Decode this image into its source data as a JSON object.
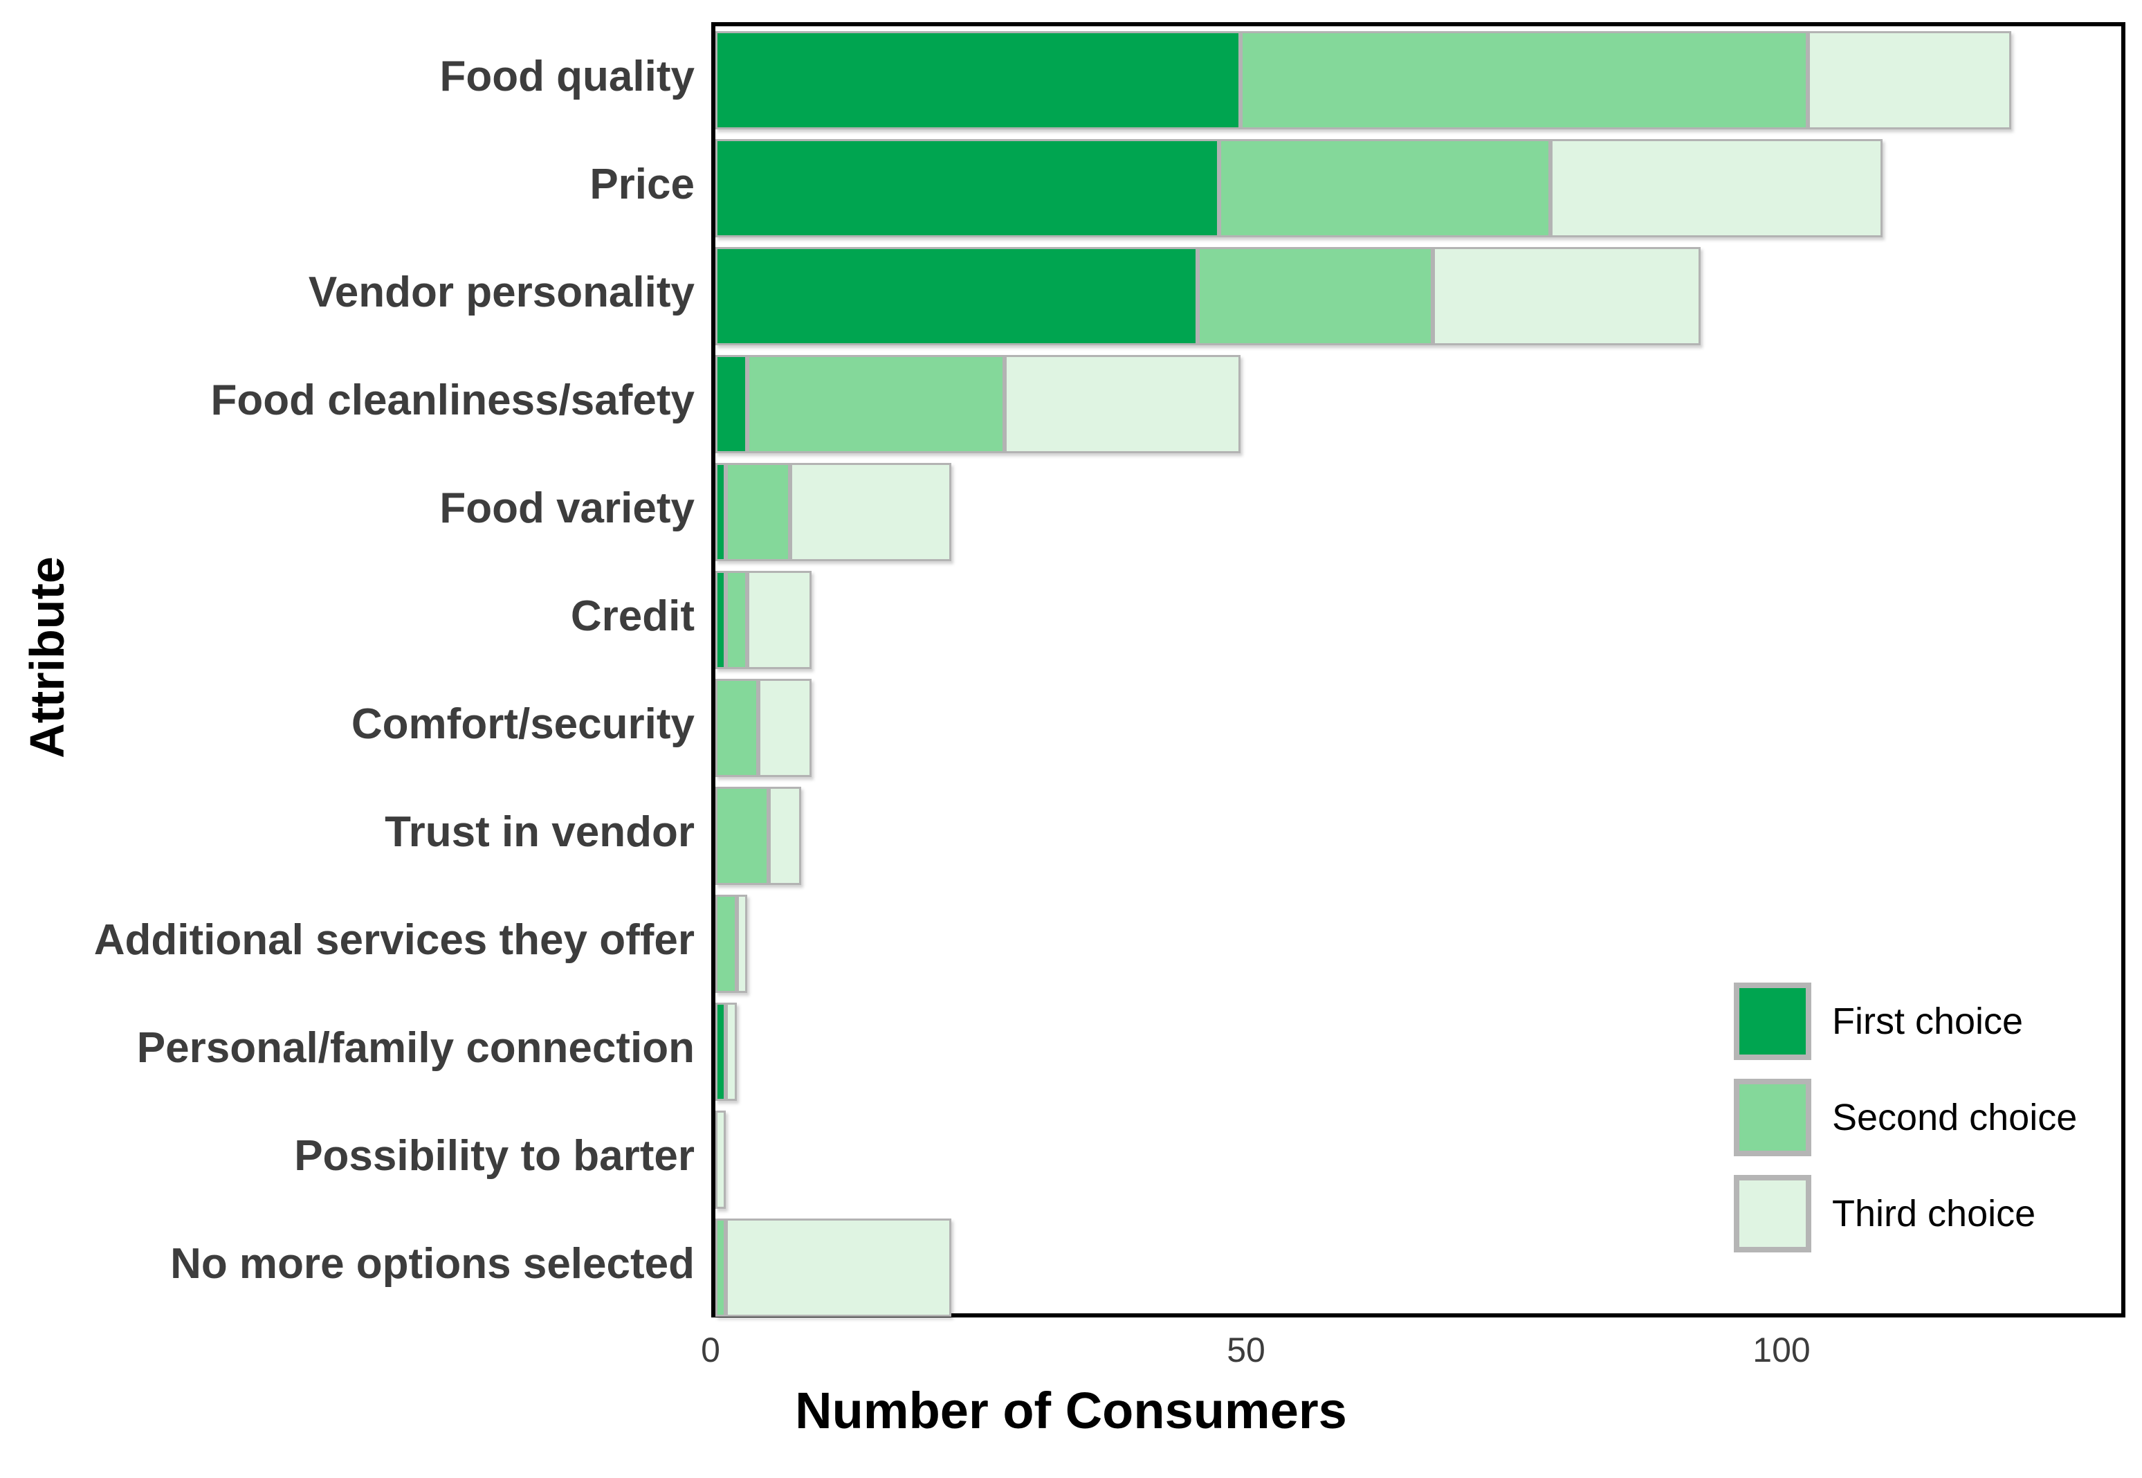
{
  "figure": {
    "y_axis_title": "Attribute",
    "x_axis_title": "Number of Consumers",
    "colors": {
      "first_choice": "#00A550",
      "second_choice": "#84D89A",
      "third_choice": "#DFF4E2",
      "bar_border": "#b3b3b3",
      "plot_frame": "#000000",
      "category_label": "#3d3d3d",
      "tick_label": "#3d3d3d"
    }
  },
  "chart_data": {
    "type": "bar",
    "stacked": true,
    "orientation": "horizontal",
    "title": "",
    "xlabel": "Number of Consumers",
    "ylabel": "Attribute",
    "xlim": [
      0,
      132
    ],
    "ticks": [
      "0",
      "50",
      "100"
    ],
    "tick_values": [
      0,
      50,
      100
    ],
    "grid": false,
    "legend_position": "bottom-right",
    "categories": [
      "Food quality",
      "Price",
      "Vendor personality",
      "Food cleanliness/safety",
      "Food variety",
      "Credit",
      "Comfort/security",
      "Trust in vendor",
      "Additional services they offer",
      "Personal/family connection",
      "Possibility to barter",
      "No more options selected"
    ],
    "series": [
      {
        "name": "First choice",
        "color": "#00A550",
        "values": [
          49,
          47,
          45,
          3,
          1,
          1,
          0,
          0,
          0,
          1,
          0,
          0
        ]
      },
      {
        "name": "Second choice",
        "color": "#84D89A",
        "values": [
          53,
          31,
          22,
          24,
          6,
          2,
          4,
          5,
          2,
          0,
          0,
          1
        ]
      },
      {
        "name": "Third choice",
        "color": "#DFF4E2",
        "values": [
          19,
          31,
          25,
          22,
          15,
          6,
          5,
          3,
          1,
          1,
          1,
          21
        ]
      }
    ],
    "totals": [
      121,
      109,
      92,
      49,
      22,
      9,
      9,
      8,
      3,
      2,
      1,
      22
    ]
  }
}
